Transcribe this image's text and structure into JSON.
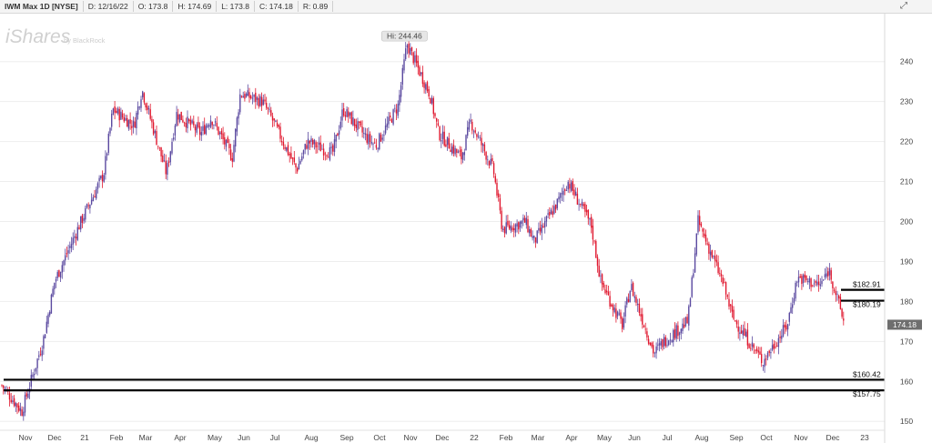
{
  "header": {
    "title": "IWM Max 1D [NYSE]",
    "date": "D: 12/16/22",
    "open": "O: 173.8",
    "high": "H: 174.69",
    "low": "L: 173.8",
    "close": "C: 174.18",
    "range": "R: 0.89"
  },
  "watermark": {
    "brand": "iShares",
    "by": "by BlackRock"
  },
  "colors": {
    "up": "#5b4aa0",
    "down": "#e0182f",
    "level": "#000000",
    "grid": "#eeeeee",
    "price_tag": "#6e6e6e"
  },
  "chart_data": {
    "type": "candlestick",
    "ylim": [
      148,
      252
    ],
    "y_ticks": [
      150,
      160,
      170,
      180,
      190,
      200,
      210,
      220,
      230,
      240
    ],
    "x_ticks": [
      "Nov",
      "Dec",
      "21",
      "Feb",
      "Mar",
      "Apr",
      "May",
      "Jun",
      "Jul",
      "Aug",
      "Sep",
      "Oct",
      "Nov",
      "Dec",
      "22",
      "Feb",
      "Mar",
      "Apr",
      "May",
      "Jun",
      "Jul",
      "Aug",
      "Sep",
      "Oct",
      "Nov",
      "Dec",
      "23"
    ],
    "price_path": [
      [
        "Oct",
        159.0
      ],
      [
        "Nov",
        152.5
      ],
      [
        "Nov",
        170.0
      ],
      [
        "Dec",
        185.0
      ],
      [
        "21",
        200.0
      ],
      [
        "21",
        212.0
      ],
      [
        "Feb",
        228.0
      ],
      [
        "Feb",
        224.0
      ],
      [
        "Mar",
        233.0
      ],
      [
        "Mar",
        212.0
      ],
      [
        "Apr",
        227.0
      ],
      [
        "Apr",
        222.0
      ],
      [
        "May",
        226.0
      ],
      [
        "May",
        216.0
      ],
      [
        "Jun",
        232.0
      ],
      [
        "Jun",
        230.0
      ],
      [
        "Jul",
        226.0
      ],
      [
        "Jul",
        213.0
      ],
      [
        "Aug",
        220.0
      ],
      [
        "Aug",
        217.0
      ],
      [
        "Sep",
        228.0
      ],
      [
        "Sep",
        221.0
      ],
      [
        "Oct",
        219.0
      ],
      [
        "Oct",
        229.0
      ],
      [
        "Nov",
        244.46
      ],
      [
        "Nov",
        232.0
      ],
      [
        "Dec",
        222.0
      ],
      [
        "Dec",
        216.0
      ],
      [
        "22",
        225.0
      ],
      [
        "22",
        213.0
      ],
      [
        "Feb",
        198.0
      ],
      [
        "Feb",
        200.0
      ],
      [
        "Mar",
        195.0
      ],
      [
        "Mar",
        205.0
      ],
      [
        "Apr",
        210.0
      ],
      [
        "Apr",
        199.0
      ],
      [
        "May",
        185.0
      ],
      [
        "May",
        174.0
      ],
      [
        "Jun",
        184.0
      ],
      [
        "Jun",
        167.0
      ],
      [
        "Jul",
        170.0
      ],
      [
        "Jul",
        175.0
      ],
      [
        "Aug",
        200.0
      ],
      [
        "Aug",
        185.0
      ],
      [
        "Sep",
        176.0
      ],
      [
        "Sep",
        168.0
      ],
      [
        "Oct",
        165.0
      ],
      [
        "Oct",
        174.0
      ],
      [
        "Nov",
        186.0
      ],
      [
        "Nov",
        184.0
      ],
      [
        "Dec",
        188.0
      ],
      [
        "Dec",
        174.18
      ]
    ],
    "high_label": "Hi: 244.46",
    "last_price": "174.18",
    "levels": [
      {
        "label": "$182.91",
        "value": 182.91
      },
      {
        "label": "$180.19",
        "value": 180.19
      },
      {
        "label": "$160.42",
        "value": 160.42
      },
      {
        "label": "$157.75",
        "value": 157.75
      }
    ]
  }
}
